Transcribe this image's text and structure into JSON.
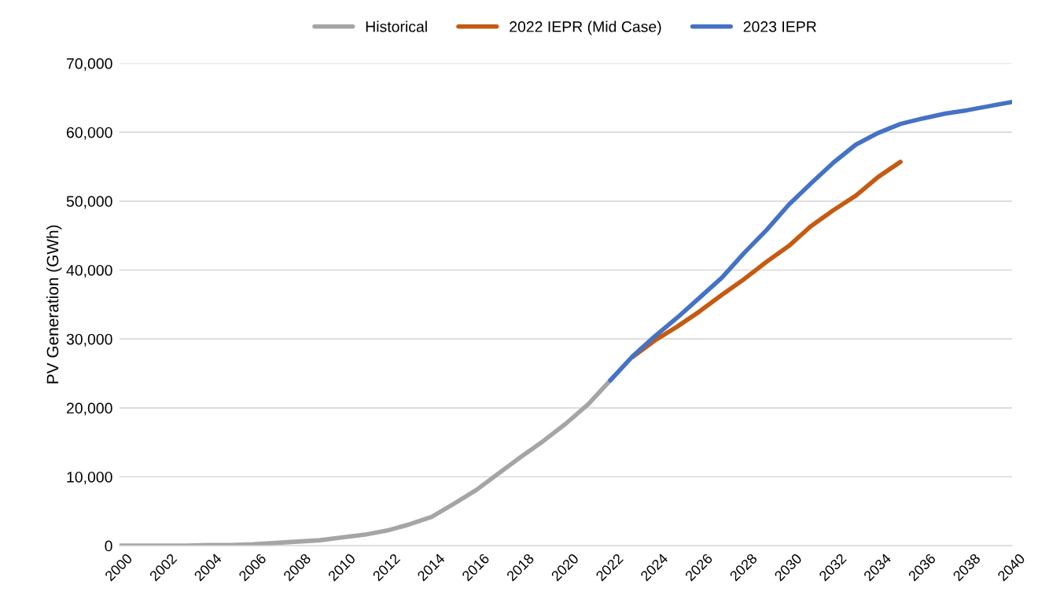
{
  "chart_data": {
    "type": "line",
    "ylabel": "PV Generation (GWh)",
    "legend": "top",
    "grid": "y",
    "line_style": "solid",
    "marker": "none",
    "xlim": [
      2000,
      2040
    ],
    "xticks": [
      2000,
      2002,
      2004,
      2006,
      2008,
      2010,
      2012,
      2014,
      2016,
      2018,
      2020,
      2022,
      2024,
      2026,
      2028,
      2030,
      2032,
      2034,
      2036,
      2038,
      2040
    ],
    "ylim": [
      0,
      70000
    ],
    "yticks": [
      0,
      {
        "value": 10000,
        "label": "10,000"
      },
      {
        "value": 20000,
        "label": "20,000"
      },
      {
        "value": 30000,
        "label": "30,000"
      },
      {
        "value": 40000,
        "label": "40,000"
      },
      {
        "value": 50000,
        "label": "50,000"
      },
      {
        "value": 60000,
        "label": "60,000"
      },
      {
        "value": 70000,
        "label": "70,000"
      }
    ],
    "series": [
      {
        "name": "Historical",
        "color": "#a5a5a5",
        "x": [
          2000,
          2001,
          2002,
          2003,
          2004,
          2005,
          2006,
          2007,
          2008,
          2009,
          2010,
          2011,
          2012,
          2013,
          2014,
          2015,
          2016,
          2017,
          2018,
          2019,
          2020,
          2021,
          2022
        ],
        "values": [
          0,
          0,
          0,
          0,
          100,
          100,
          200,
          400,
          600,
          800,
          1200,
          1600,
          2200,
          3100,
          4200,
          6100,
          8100,
          10500,
          12900,
          15200,
          17700,
          20500,
          24000
        ]
      },
      {
        "name": "2022 IEPR (Mid Case)",
        "color": "#c55a11",
        "x": [
          2023,
          2024,
          2025,
          2026,
          2027,
          2028,
          2029,
          2030,
          2031,
          2032,
          2033,
          2034,
          2035
        ],
        "values": [
          27400,
          29800,
          31800,
          34000,
          36400,
          38700,
          41200,
          43500,
          46400,
          48700,
          50800,
          53500,
          55700
        ]
      },
      {
        "name": "2023 IEPR",
        "color": "#4472c4",
        "x": [
          2022,
          2023,
          2024,
          2025,
          2026,
          2027,
          2028,
          2029,
          2030,
          2031,
          2032,
          2033,
          2034,
          2035,
          2036,
          2037,
          2038,
          2039,
          2040
        ],
        "values": [
          24000,
          27500,
          30400,
          33100,
          36000,
          38900,
          42500,
          45800,
          49500,
          52600,
          55600,
          58200,
          59900,
          61200,
          62000,
          62700,
          63200,
          63800,
          64400
        ]
      }
    ]
  }
}
